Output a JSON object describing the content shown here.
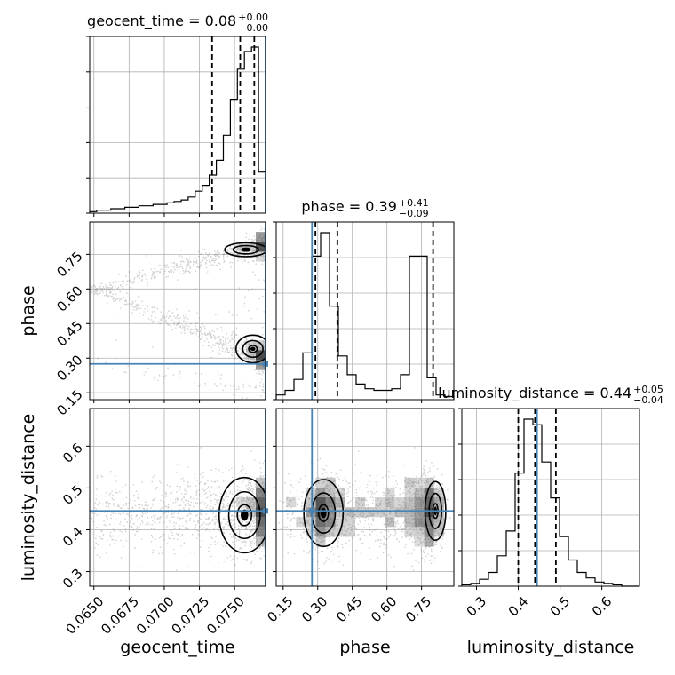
{
  "chart_data": {
    "type": "corner",
    "truth_color": "#4682b4",
    "parameters": [
      {
        "key": "geocent_time",
        "label": "geocent_time",
        "range": [
          0.0647,
          0.0772
        ],
        "ticks": [
          0.065,
          0.0675,
          0.07,
          0.0725,
          0.075
        ],
        "tick_labels": [
          "0.0650",
          "0.0675",
          "0.0700",
          "0.0725",
          "0.0750"
        ],
        "truth": 0.0772,
        "quantiles": [
          0.0734,
          0.0754,
          0.0764
        ],
        "title": "geocent_time = 0.08",
        "title_plus": "+0.00",
        "title_minus": "−0.00",
        "hist": {
          "edges": [
            0.0647,
            0.0652,
            0.0657,
            0.0662,
            0.0667,
            0.0672,
            0.0677,
            0.0682,
            0.0687,
            0.0692,
            0.0697,
            0.0702,
            0.0707,
            0.0712,
            0.0717,
            0.0722,
            0.0727,
            0.0732,
            0.0737,
            0.0742,
            0.0747,
            0.0752,
            0.0757,
            0.0762,
            0.0767,
            0.0772
          ],
          "counts": [
            1,
            2,
            2,
            3,
            3,
            4,
            4,
            5,
            5,
            6,
            6,
            7,
            8,
            9,
            11,
            15,
            19,
            26,
            36,
            53,
            77,
            98,
            110,
            113,
            28
          ]
        }
      },
      {
        "key": "phase",
        "label": "phase",
        "range": [
          0.12,
          0.89
        ],
        "ticks": [
          0.15,
          0.3,
          0.45,
          0.6,
          0.75
        ],
        "tick_labels": [
          "0.15",
          "0.30",
          "0.45",
          "0.60",
          "0.75"
        ],
        "truth": 0.275,
        "quantiles": [
          0.29,
          0.385,
          0.8
        ],
        "title": "phase = 0.39",
        "title_plus": "+0.41",
        "title_minus": "−0.09",
        "hist": {
          "edges": [
            0.12,
            0.1585,
            0.197,
            0.2355,
            0.274,
            0.3125,
            0.351,
            0.3895,
            0.428,
            0.4665,
            0.505,
            0.5435,
            0.582,
            0.6205,
            0.659,
            0.6975,
            0.736,
            0.7745,
            0.813,
            0.8515,
            0.89
          ],
          "counts": [
            3,
            6,
            13,
            30,
            92,
            107,
            60,
            28,
            16,
            10,
            7,
            6,
            6,
            7,
            16,
            92,
            92,
            14,
            3,
            2
          ]
        }
      },
      {
        "key": "luminosity_distance",
        "label": "luminosity_distance",
        "range": [
          0.265,
          0.69
        ],
        "ticks": [
          0.3,
          0.4,
          0.5,
          0.6
        ],
        "tick_labels": [
          "0.3",
          "0.4",
          "0.5",
          "0.6"
        ],
        "truth": 0.445,
        "quantiles": [
          0.4,
          0.44,
          0.49
        ],
        "title": "luminosity_distance = 0.44",
        "title_plus": "+0.05",
        "title_minus": "−0.04",
        "hist": {
          "edges": [
            0.265,
            0.2862,
            0.3075,
            0.3288,
            0.35,
            0.3712,
            0.3925,
            0.4137,
            0.435,
            0.4562,
            0.4775,
            0.4987,
            0.52,
            0.5412,
            0.5625,
            0.5837,
            0.605,
            0.6262,
            0.6475,
            0.6688,
            0.69
          ],
          "counts": [
            1,
            2,
            5,
            10,
            22,
            40,
            82,
            121,
            117,
            90,
            64,
            36,
            19,
            10,
            6,
            3,
            2,
            1,
            0,
            0
          ]
        }
      }
    ],
    "density_shading": true,
    "scatter_points": true,
    "contours": true,
    "grid": true
  }
}
